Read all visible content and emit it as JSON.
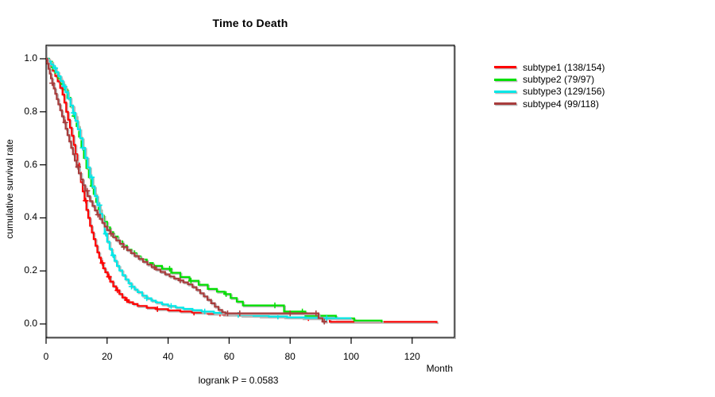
{
  "chart_data": {
    "type": "line",
    "style": "kaplan-meier-step-survival",
    "title": "Time to Death",
    "xlabel": "Month",
    "ylabel": "cumulative survival rate",
    "annotation": "logrank P = 0.0583",
    "xticks": [
      0,
      20,
      40,
      60,
      80,
      100,
      120
    ],
    "yticks": [
      0.0,
      0.2,
      0.4,
      0.6,
      0.8,
      1.0
    ],
    "xlim": [
      0,
      134
    ],
    "ylim": [
      0,
      1.04
    ],
    "grid": false,
    "legend_position": "right-outside",
    "censor_mark": "plus",
    "shadow_color": "#b9b9b9",
    "series": [
      {
        "name": "subtype1",
        "label": "subtype1 (138/154)",
        "color": "#ff0000",
        "points": [
          [
            0,
            1
          ],
          [
            0.7,
            0.987
          ],
          [
            1.4,
            0.974
          ],
          [
            2.2,
            0.955
          ],
          [
            3,
            0.935
          ],
          [
            3.8,
            0.915
          ],
          [
            4.6,
            0.89
          ],
          [
            5.4,
            0.865
          ],
          [
            6,
            0.835
          ],
          [
            6.6,
            0.8
          ],
          [
            7.2,
            0.77
          ],
          [
            7.8,
            0.74
          ],
          [
            8.4,
            0.71
          ],
          [
            9,
            0.675
          ],
          [
            9.6,
            0.64
          ],
          [
            10.2,
            0.605
          ],
          [
            10.8,
            0.57
          ],
          [
            11.4,
            0.535
          ],
          [
            12,
            0.5
          ],
          [
            12.6,
            0.465
          ],
          [
            13.2,
            0.43
          ],
          [
            13.8,
            0.4
          ],
          [
            14.4,
            0.37
          ],
          [
            15,
            0.345
          ],
          [
            15.6,
            0.32
          ],
          [
            16.2,
            0.295
          ],
          [
            16.8,
            0.27
          ],
          [
            17.4,
            0.25
          ],
          [
            18,
            0.23
          ],
          [
            18.7,
            0.21
          ],
          [
            19.4,
            0.195
          ],
          [
            20.2,
            0.178
          ],
          [
            21,
            0.16
          ],
          [
            22,
            0.142
          ],
          [
            23,
            0.127
          ],
          [
            24,
            0.113
          ],
          [
            25,
            0.1
          ],
          [
            26,
            0.09
          ],
          [
            27,
            0.082
          ],
          [
            28.5,
            0.075
          ],
          [
            30,
            0.068
          ],
          [
            33,
            0.061
          ],
          [
            36,
            0.056
          ],
          [
            40,
            0.051
          ],
          [
            44,
            0.047
          ],
          [
            48,
            0.043
          ],
          [
            53,
            0.039
          ],
          [
            58,
            0.035
          ],
          [
            64,
            0.031
          ],
          [
            70,
            0.028
          ],
          [
            78,
            0.025
          ],
          [
            84,
            0.022
          ],
          [
            93,
            0.008
          ],
          [
            128,
            0.004
          ]
        ],
        "censor_times": [
          1,
          13,
          18.5,
          20.6,
          23.4,
          26.5,
          36.5,
          48.5,
          57,
          86
        ]
      },
      {
        "name": "subtype2",
        "label": "subtype2 (79/97)",
        "color": "#00e000",
        "points": [
          [
            0,
            1
          ],
          [
            1,
            0.989
          ],
          [
            2,
            0.968
          ],
          [
            3,
            0.947
          ],
          [
            4,
            0.926
          ],
          [
            5,
            0.905
          ],
          [
            6,
            0.884
          ],
          [
            7,
            0.853
          ],
          [
            8,
            0.82
          ],
          [
            9,
            0.784
          ],
          [
            10,
            0.746
          ],
          [
            10.8,
            0.706
          ],
          [
            11.6,
            0.666
          ],
          [
            12.4,
            0.626
          ],
          [
            13.2,
            0.588
          ],
          [
            14,
            0.553
          ],
          [
            14.8,
            0.52
          ],
          [
            15.6,
            0.49
          ],
          [
            16.4,
            0.46
          ],
          [
            17.2,
            0.432
          ],
          [
            18,
            0.408
          ],
          [
            19,
            0.385
          ],
          [
            20,
            0.364
          ],
          [
            21,
            0.346
          ],
          [
            22,
            0.33
          ],
          [
            23.5,
            0.312
          ],
          [
            25,
            0.295
          ],
          [
            26.5,
            0.28
          ],
          [
            28,
            0.267
          ],
          [
            29.5,
            0.255
          ],
          [
            31,
            0.243
          ],
          [
            33,
            0.23
          ],
          [
            35,
            0.219
          ],
          [
            38,
            0.208
          ],
          [
            41,
            0.193
          ],
          [
            44,
            0.177
          ],
          [
            47,
            0.163
          ],
          [
            50,
            0.148
          ],
          [
            53,
            0.132
          ],
          [
            56,
            0.122
          ],
          [
            58.5,
            0.113
          ],
          [
            60.5,
            0.098
          ],
          [
            62.5,
            0.084
          ],
          [
            64.5,
            0.07
          ],
          [
            78,
            0.047
          ],
          [
            85,
            0.031
          ],
          [
            95,
            0.021
          ],
          [
            101,
            0.013
          ],
          [
            110,
            0.006
          ]
        ],
        "censor_times": [
          2.2,
          9.3,
          15.2,
          22.5,
          29,
          40.5,
          47.5,
          59,
          75,
          84
        ]
      },
      {
        "name": "subtype3",
        "label": "subtype3 (129/156)",
        "color": "#00e8e8",
        "points": [
          [
            0,
            1
          ],
          [
            0.8,
            0.99
          ],
          [
            1.6,
            0.978
          ],
          [
            2.4,
            0.965
          ],
          [
            3.2,
            0.95
          ],
          [
            4,
            0.934
          ],
          [
            4.8,
            0.916
          ],
          [
            5.6,
            0.896
          ],
          [
            6.4,
            0.874
          ],
          [
            7.2,
            0.85
          ],
          [
            8,
            0.824
          ],
          [
            8.8,
            0.796
          ],
          [
            9.6,
            0.766
          ],
          [
            10.4,
            0.734
          ],
          [
            11.2,
            0.7
          ],
          [
            12,
            0.664
          ],
          [
            12.8,
            0.627
          ],
          [
            13.6,
            0.59
          ],
          [
            14.4,
            0.553
          ],
          [
            15.2,
            0.517
          ],
          [
            16,
            0.482
          ],
          [
            16.8,
            0.448
          ],
          [
            17.6,
            0.415
          ],
          [
            18.4,
            0.384
          ],
          [
            19.2,
            0.34
          ],
          [
            20,
            0.31
          ],
          [
            20.8,
            0.283
          ],
          [
            21.6,
            0.259
          ],
          [
            22.4,
            0.238
          ],
          [
            23.2,
            0.219
          ],
          [
            24,
            0.202
          ],
          [
            25,
            0.184
          ],
          [
            26,
            0.168
          ],
          [
            27,
            0.154
          ],
          [
            28,
            0.141
          ],
          [
            29,
            0.13
          ],
          [
            30,
            0.12
          ],
          [
            31.5,
            0.107
          ],
          [
            33,
            0.097
          ],
          [
            34.5,
            0.088
          ],
          [
            36,
            0.081
          ],
          [
            38,
            0.074
          ],
          [
            40,
            0.068
          ],
          [
            42.5,
            0.062
          ],
          [
            45,
            0.057
          ],
          [
            48,
            0.052
          ],
          [
            51,
            0.047
          ],
          [
            55,
            0.042
          ],
          [
            59,
            0.038
          ],
          [
            63,
            0.034
          ],
          [
            68,
            0.031
          ],
          [
            73,
            0.028
          ],
          [
            79,
            0.025
          ],
          [
            85,
            0.023
          ],
          [
            90,
            0.022
          ],
          [
            100,
            0.022
          ]
        ],
        "censor_times": [
          3,
          6,
          9,
          12,
          15,
          17.5,
          19.6,
          22,
          28,
          33,
          41,
          52,
          63,
          76,
          92
        ]
      },
      {
        "name": "subtype4",
        "label": "subtype4 (99/118)",
        "color": "#a83c3c",
        "points": [
          [
            0,
            1
          ],
          [
            0.4,
            0.981
          ],
          [
            0.8,
            0.962
          ],
          [
            1.2,
            0.944
          ],
          [
            1.6,
            0.926
          ],
          [
            2,
            0.908
          ],
          [
            2.5,
            0.888
          ],
          [
            3,
            0.868
          ],
          [
            3.5,
            0.848
          ],
          [
            4,
            0.828
          ],
          [
            4.6,
            0.806
          ],
          [
            5.2,
            0.783
          ],
          [
            5.8,
            0.76
          ],
          [
            6.4,
            0.736
          ],
          [
            7,
            0.712
          ],
          [
            7.6,
            0.688
          ],
          [
            8.2,
            0.664
          ],
          [
            8.8,
            0.64
          ],
          [
            9.4,
            0.616
          ],
          [
            10,
            0.592
          ],
          [
            10.7,
            0.568
          ],
          [
            11.4,
            0.545
          ],
          [
            12.1,
            0.523
          ],
          [
            12.8,
            0.502
          ],
          [
            13.6,
            0.482
          ],
          [
            14.4,
            0.463
          ],
          [
            15.2,
            0.445
          ],
          [
            16,
            0.428
          ],
          [
            16.8,
            0.412
          ],
          [
            17.6,
            0.396
          ],
          [
            18.4,
            0.381
          ],
          [
            19.2,
            0.367
          ],
          [
            20,
            0.354
          ],
          [
            21,
            0.34
          ],
          [
            22,
            0.327
          ],
          [
            23,
            0.315
          ],
          [
            24.2,
            0.302
          ],
          [
            25.4,
            0.29
          ],
          [
            26.6,
            0.278
          ],
          [
            27.8,
            0.267
          ],
          [
            29,
            0.256
          ],
          [
            30.4,
            0.245
          ],
          [
            31.8,
            0.234
          ],
          [
            33.2,
            0.224
          ],
          [
            34.6,
            0.214
          ],
          [
            36,
            0.205
          ],
          [
            37.5,
            0.196
          ],
          [
            39,
            0.187
          ],
          [
            40.5,
            0.179
          ],
          [
            42,
            0.171
          ],
          [
            43.5,
            0.164
          ],
          [
            45,
            0.157
          ],
          [
            46.5,
            0.149
          ],
          [
            48,
            0.139
          ],
          [
            49.3,
            0.128
          ],
          [
            50.5,
            0.116
          ],
          [
            51.7,
            0.104
          ],
          [
            52.9,
            0.091
          ],
          [
            54.1,
            0.078
          ],
          [
            55.3,
            0.065
          ],
          [
            56.5,
            0.053
          ],
          [
            57.7,
            0.044
          ],
          [
            58.8,
            0.04
          ],
          [
            89.3,
            0.022
          ],
          [
            90.6,
            0.009
          ],
          [
            92,
            0.009
          ]
        ],
        "censor_times": [
          2,
          6.3,
          10.5,
          13.5,
          17,
          21.3,
          25.5,
          35.5,
          44,
          59.5,
          63.5,
          80,
          88.5,
          91.2
        ]
      }
    ]
  }
}
